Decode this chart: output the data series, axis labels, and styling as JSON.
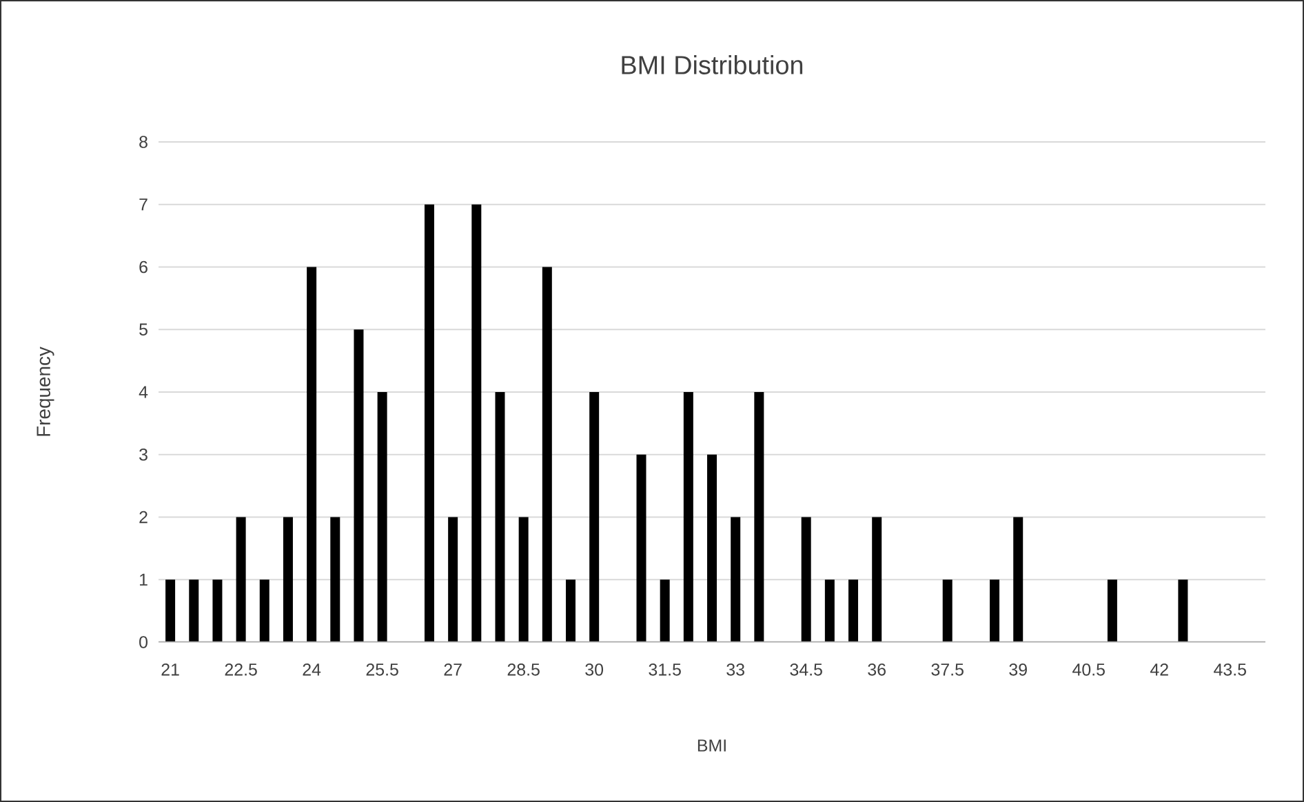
{
  "chart_data": {
    "type": "bar",
    "title": "BMI Distribution",
    "xlabel": "BMI",
    "ylabel": "Frequency",
    "categories": [
      "21",
      null,
      null,
      "22.5",
      null,
      null,
      "24",
      null,
      null,
      "25.5",
      null,
      null,
      "27",
      null,
      null,
      "28.5",
      null,
      null,
      "30",
      null,
      null,
      "31.5",
      null,
      null,
      "33",
      null,
      null,
      "34.5",
      null,
      null,
      "36",
      null,
      null,
      "37.5",
      null,
      null,
      "39",
      null,
      null,
      "40.5",
      null,
      null,
      "42",
      null,
      null,
      "43.5",
      null
    ],
    "values": [
      1,
      1,
      1,
      2,
      1,
      2,
      6,
      2,
      5,
      4,
      0,
      7,
      2,
      7,
      4,
      2,
      6,
      1,
      4,
      0,
      3,
      1,
      4,
      3,
      2,
      4,
      0,
      2,
      1,
      1,
      2,
      0,
      0,
      1,
      0,
      1,
      2,
      0,
      0,
      0,
      1,
      0,
      0,
      1,
      0,
      0,
      0
    ],
    "color": "#000000",
    "ylim": [
      0,
      8
    ],
    "yticks": [
      0,
      1,
      2,
      3,
      4,
      5,
      6,
      7,
      8
    ],
    "grid": "y"
  }
}
